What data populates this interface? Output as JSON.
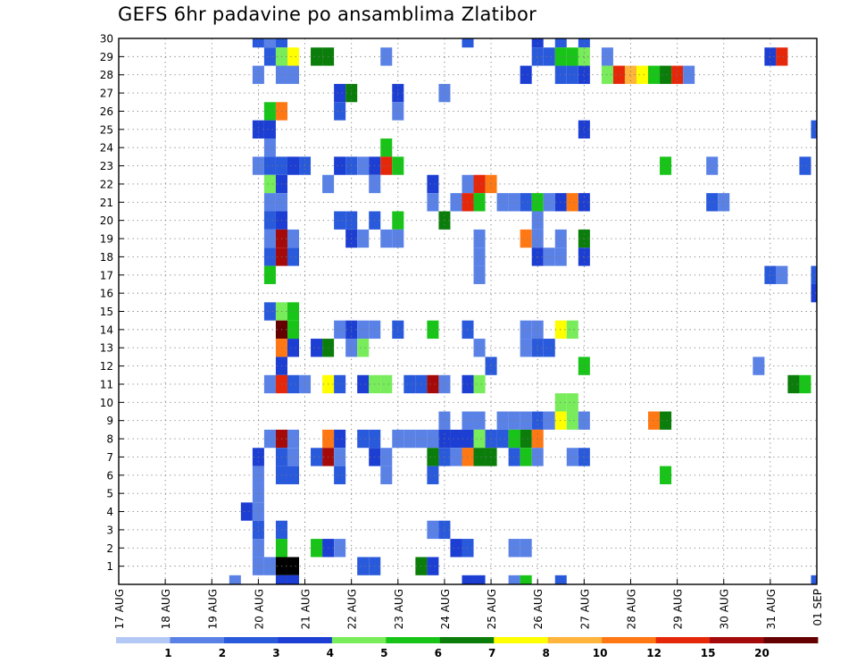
{
  "title": "GEFS 6hr padavine po ansamblima Zlatibor",
  "chart_data": {
    "type": "heatmap",
    "title": "GEFS 6hr padavine po ansamblima Zlatibor",
    "x_tick_labels": [
      "17 AUG",
      "18 AUG",
      "19 AUG",
      "20 AUG",
      "21 AUG",
      "22 AUG",
      "23 AUG",
      "24 AUG",
      "25 AUG",
      "26 AUG",
      "27 AUG",
      "28 AUG",
      "29 AUG",
      "30 AUG",
      "31 AUG",
      "01 SEP"
    ],
    "y_tick_labels": [
      "1",
      "2",
      "3",
      "4",
      "5",
      "6",
      "7",
      "8",
      "9",
      "10",
      "11",
      "12",
      "13",
      "14",
      "15",
      "16",
      "17",
      "18",
      "19",
      "20",
      "21",
      "22",
      "23",
      "24",
      "25",
      "26",
      "27",
      "28",
      "29",
      "30"
    ],
    "xlim_steps_6h": [
      0,
      60
    ],
    "ylim_members": [
      0,
      30
    ],
    "grid": true,
    "colorbar": {
      "labels": [
        "1",
        "2",
        "3",
        "4",
        "5",
        "6",
        "7",
        "8",
        "10",
        "12",
        "15",
        "20"
      ],
      "colors": [
        "#b4c8f5",
        "#5a82e6",
        "#2a5adc",
        "#1c3ed2",
        "#78ec5a",
        "#18c418",
        "#0a7d0a",
        "#ffff00",
        "#ffb43c",
        "#ff7814",
        "#e6280a",
        "#a50a0a",
        "#640000"
      ]
    },
    "cells_note": "each cell: [x_step (6h steps from 17 AUG 00Z), ensemble member, color class index]",
    "cells": [
      [
        12,
        30,
        2
      ],
      [
        13,
        30,
        1
      ],
      [
        14,
        30,
        2
      ],
      [
        30,
        30,
        2
      ],
      [
        36,
        30,
        3
      ],
      [
        38,
        30,
        2
      ],
      [
        40,
        30,
        2
      ],
      [
        13,
        29,
        2
      ],
      [
        14,
        29,
        4
      ],
      [
        15,
        29,
        7
      ],
      [
        17,
        29,
        6
      ],
      [
        18,
        29,
        6
      ],
      [
        23,
        29,
        1
      ],
      [
        36,
        29,
        2
      ],
      [
        37,
        29,
        2
      ],
      [
        38,
        29,
        5
      ],
      [
        39,
        29,
        5
      ],
      [
        40,
        29,
        4
      ],
      [
        42,
        29,
        1
      ],
      [
        56,
        29,
        3
      ],
      [
        57,
        29,
        10
      ],
      [
        12,
        28,
        1
      ],
      [
        14,
        28,
        1
      ],
      [
        15,
        28,
        1
      ],
      [
        35,
        28,
        3
      ],
      [
        38,
        28,
        2
      ],
      [
        39,
        28,
        2
      ],
      [
        40,
        28,
        3
      ],
      [
        42,
        28,
        4
      ],
      [
        43,
        28,
        10
      ],
      [
        44,
        28,
        8
      ],
      [
        45,
        28,
        7
      ],
      [
        46,
        28,
        5
      ],
      [
        47,
        28,
        6
      ],
      [
        48,
        28,
        10
      ],
      [
        49,
        28,
        1
      ],
      [
        19,
        27,
        3
      ],
      [
        20,
        27,
        6
      ],
      [
        24,
        27,
        3
      ],
      [
        28,
        27,
        1
      ],
      [
        13,
        26,
        5
      ],
      [
        14,
        26,
        9
      ],
      [
        19,
        26,
        2
      ],
      [
        24,
        26,
        1
      ],
      [
        12,
        25,
        3
      ],
      [
        13,
        25,
        3
      ],
      [
        40,
        25,
        3
      ],
      [
        60,
        25,
        2
      ],
      [
        13,
        24,
        1
      ],
      [
        23,
        24,
        5
      ],
      [
        12,
        23,
        1
      ],
      [
        13,
        23,
        2
      ],
      [
        14,
        23,
        2
      ],
      [
        15,
        23,
        3
      ],
      [
        16,
        23,
        2
      ],
      [
        19,
        23,
        3
      ],
      [
        20,
        23,
        2
      ],
      [
        21,
        23,
        1
      ],
      [
        22,
        23,
        3
      ],
      [
        23,
        23,
        10
      ],
      [
        24,
        23,
        5
      ],
      [
        47,
        23,
        5
      ],
      [
        51,
        23,
        1
      ],
      [
        59,
        23,
        2
      ],
      [
        13,
        22,
        4
      ],
      [
        14,
        22,
        3
      ],
      [
        18,
        22,
        1
      ],
      [
        22,
        22,
        1
      ],
      [
        27,
        22,
        3
      ],
      [
        30,
        22,
        1
      ],
      [
        31,
        22,
        10
      ],
      [
        32,
        22,
        9
      ],
      [
        13,
        21,
        1
      ],
      [
        14,
        21,
        1
      ],
      [
        27,
        21,
        1
      ],
      [
        29,
        21,
        1
      ],
      [
        30,
        21,
        10
      ],
      [
        31,
        21,
        5
      ],
      [
        33,
        21,
        1
      ],
      [
        34,
        21,
        1
      ],
      [
        35,
        21,
        2
      ],
      [
        36,
        21,
        5
      ],
      [
        37,
        21,
        1
      ],
      [
        38,
        21,
        3
      ],
      [
        39,
        21,
        9
      ],
      [
        40,
        21,
        3
      ],
      [
        51,
        21,
        2
      ],
      [
        52,
        21,
        1
      ],
      [
        13,
        20,
        2
      ],
      [
        14,
        20,
        3
      ],
      [
        19,
        20,
        2
      ],
      [
        20,
        20,
        2
      ],
      [
        22,
        20,
        2
      ],
      [
        24,
        20,
        5
      ],
      [
        28,
        20,
        6
      ],
      [
        36,
        20,
        1
      ],
      [
        13,
        19,
        1
      ],
      [
        14,
        19,
        11
      ],
      [
        15,
        19,
        1
      ],
      [
        20,
        19,
        3
      ],
      [
        21,
        19,
        1
      ],
      [
        23,
        19,
        1
      ],
      [
        24,
        19,
        1
      ],
      [
        31,
        19,
        1
      ],
      [
        35,
        19,
        9
      ],
      [
        36,
        19,
        1
      ],
      [
        38,
        19,
        1
      ],
      [
        40,
        19,
        6
      ],
      [
        13,
        18,
        2
      ],
      [
        14,
        18,
        11
      ],
      [
        15,
        18,
        2
      ],
      [
        31,
        18,
        1
      ],
      [
        36,
        18,
        3
      ],
      [
        37,
        18,
        1
      ],
      [
        38,
        18,
        1
      ],
      [
        40,
        18,
        3
      ],
      [
        13,
        17,
        5
      ],
      [
        31,
        17,
        1
      ],
      [
        56,
        17,
        2
      ],
      [
        57,
        17,
        1
      ],
      [
        60,
        17,
        2
      ],
      [
        60,
        16,
        3
      ],
      [
        13,
        15,
        2
      ],
      [
        14,
        15,
        4
      ],
      [
        15,
        15,
        5
      ],
      [
        14,
        14,
        12
      ],
      [
        15,
        14,
        5
      ],
      [
        19,
        14,
        1
      ],
      [
        20,
        14,
        3
      ],
      [
        21,
        14,
        1
      ],
      [
        22,
        14,
        1
      ],
      [
        24,
        14,
        2
      ],
      [
        27,
        14,
        5
      ],
      [
        30,
        14,
        2
      ],
      [
        35,
        14,
        1
      ],
      [
        36,
        14,
        1
      ],
      [
        38,
        14,
        7
      ],
      [
        39,
        14,
        4
      ],
      [
        14,
        13,
        9
      ],
      [
        15,
        13,
        3
      ],
      [
        17,
        13,
        3
      ],
      [
        18,
        13,
        6
      ],
      [
        20,
        13,
        1
      ],
      [
        21,
        13,
        4
      ],
      [
        31,
        13,
        1
      ],
      [
        35,
        13,
        1
      ],
      [
        36,
        13,
        2
      ],
      [
        37,
        13,
        2
      ],
      [
        14,
        12,
        3
      ],
      [
        32,
        12,
        2
      ],
      [
        40,
        12,
        5
      ],
      [
        55,
        12,
        1
      ],
      [
        13,
        11,
        1
      ],
      [
        14,
        11,
        10
      ],
      [
        15,
        11,
        2
      ],
      [
        16,
        11,
        1
      ],
      [
        18,
        11,
        7
      ],
      [
        19,
        11,
        2
      ],
      [
        21,
        11,
        3
      ],
      [
        22,
        11,
        4
      ],
      [
        23,
        11,
        4
      ],
      [
        25,
        11,
        2
      ],
      [
        26,
        11,
        2
      ],
      [
        27,
        11,
        11
      ],
      [
        28,
        11,
        1
      ],
      [
        30,
        11,
        3
      ],
      [
        31,
        11,
        4
      ],
      [
        58,
        11,
        6
      ],
      [
        59,
        11,
        5
      ],
      [
        38,
        10,
        4
      ],
      [
        39,
        10,
        4
      ],
      [
        28,
        9,
        1
      ],
      [
        30,
        9,
        1
      ],
      [
        31,
        9,
        1
      ],
      [
        33,
        9,
        1
      ],
      [
        34,
        9,
        1
      ],
      [
        35,
        9,
        1
      ],
      [
        36,
        9,
        2
      ],
      [
        37,
        9,
        1
      ],
      [
        38,
        9,
        7
      ],
      [
        39,
        9,
        4
      ],
      [
        40,
        9,
        1
      ],
      [
        46,
        9,
        9
      ],
      [
        47,
        9,
        6
      ],
      [
        13,
        8,
        1
      ],
      [
        14,
        8,
        11
      ],
      [
        15,
        8,
        1
      ],
      [
        18,
        8,
        9
      ],
      [
        19,
        8,
        3
      ],
      [
        21,
        8,
        2
      ],
      [
        22,
        8,
        2
      ],
      [
        24,
        8,
        1
      ],
      [
        25,
        8,
        1
      ],
      [
        26,
        8,
        1
      ],
      [
        27,
        8,
        1
      ],
      [
        28,
        8,
        3
      ],
      [
        29,
        8,
        3
      ],
      [
        30,
        8,
        3
      ],
      [
        31,
        8,
        4
      ],
      [
        32,
        8,
        2
      ],
      [
        33,
        8,
        2
      ],
      [
        34,
        8,
        5
      ],
      [
        35,
        8,
        6
      ],
      [
        36,
        8,
        9
      ],
      [
        12,
        7,
        3
      ],
      [
        14,
        7,
        2
      ],
      [
        15,
        7,
        1
      ],
      [
        17,
        7,
        2
      ],
      [
        18,
        7,
        11
      ],
      [
        19,
        7,
        1
      ],
      [
        22,
        7,
        3
      ],
      [
        23,
        7,
        1
      ],
      [
        27,
        7,
        6
      ],
      [
        28,
        7,
        2
      ],
      [
        29,
        7,
        1
      ],
      [
        30,
        7,
        9
      ],
      [
        31,
        7,
        6
      ],
      [
        32,
        7,
        6
      ],
      [
        34,
        7,
        2
      ],
      [
        35,
        7,
        5
      ],
      [
        36,
        7,
        1
      ],
      [
        39,
        7,
        1
      ],
      [
        40,
        7,
        2
      ],
      [
        12,
        6,
        1
      ],
      [
        14,
        6,
        2
      ],
      [
        15,
        6,
        2
      ],
      [
        19,
        6,
        2
      ],
      [
        23,
        6,
        1
      ],
      [
        27,
        6,
        2
      ],
      [
        47,
        6,
        5
      ],
      [
        12,
        5,
        1
      ],
      [
        11,
        4,
        3
      ],
      [
        12,
        4,
        1
      ],
      [
        12,
        3,
        2
      ],
      [
        14,
        3,
        2
      ],
      [
        27,
        3,
        1
      ],
      [
        28,
        3,
        2
      ],
      [
        12,
        2,
        1
      ],
      [
        14,
        2,
        5
      ],
      [
        17,
        2,
        5
      ],
      [
        18,
        2,
        3
      ],
      [
        19,
        2,
        1
      ],
      [
        29,
        2,
        3
      ],
      [
        30,
        2,
        2
      ],
      [
        34,
        2,
        1
      ],
      [
        35,
        2,
        1
      ],
      [
        12,
        1,
        1
      ],
      [
        13,
        1,
        1
      ],
      [
        14,
        1,
        13
      ],
      [
        15,
        1,
        13
      ],
      [
        21,
        1,
        2
      ],
      [
        22,
        1,
        2
      ],
      [
        26,
        1,
        6
      ],
      [
        27,
        1,
        3
      ],
      [
        10,
        0,
        1
      ],
      [
        14,
        0,
        3
      ],
      [
        15,
        0,
        3
      ],
      [
        30,
        0,
        3
      ],
      [
        31,
        0,
        3
      ],
      [
        34,
        0,
        1
      ],
      [
        35,
        0,
        5
      ],
      [
        38,
        0,
        2
      ],
      [
        60,
        0,
        2
      ]
    ]
  }
}
